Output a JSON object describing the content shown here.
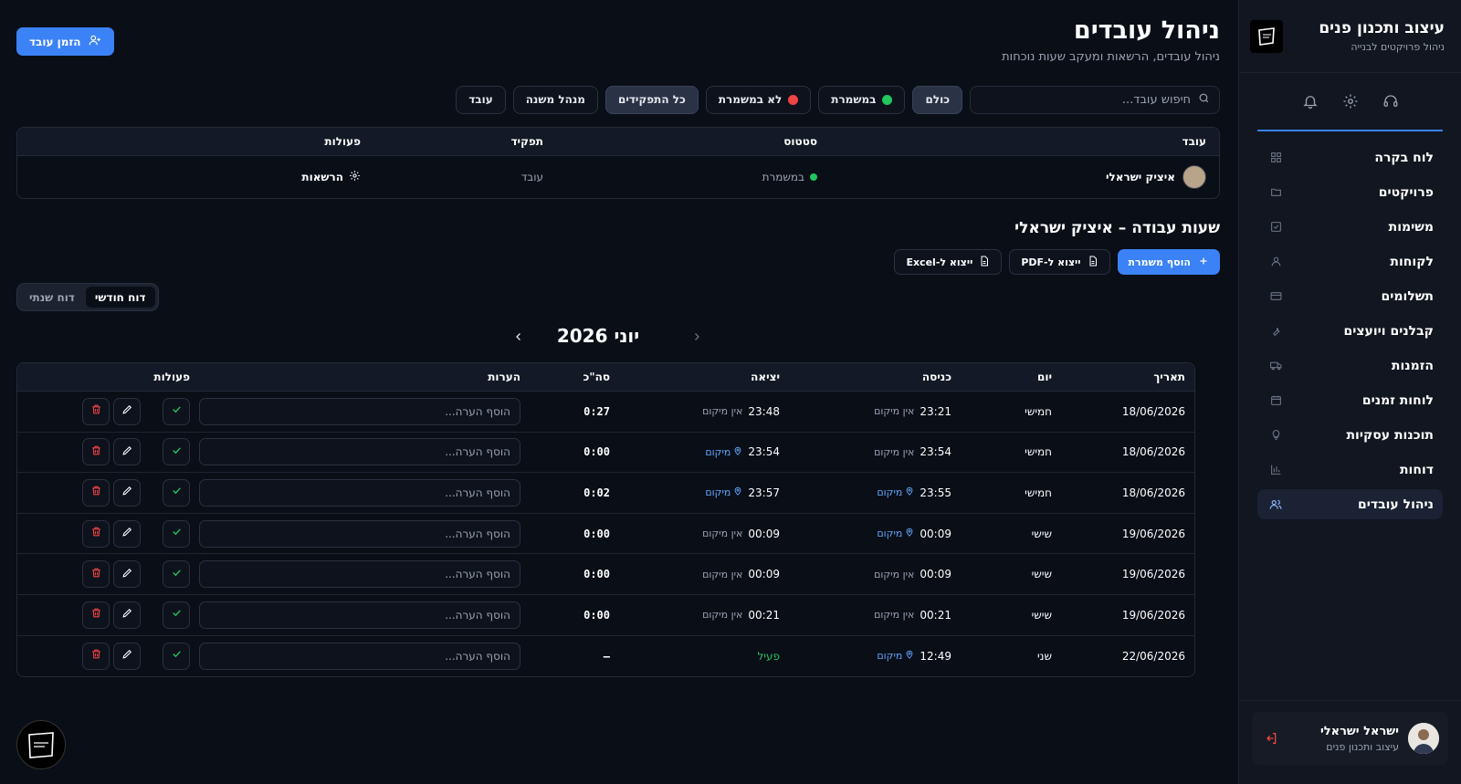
{
  "brand": {
    "title": "עיצוב ותכנון פנים",
    "subtitle": "ניהול פרויקטים לבנייה"
  },
  "sidebar": {
    "top_icons": [
      "bell-icon",
      "gear-icon",
      "headset-icon"
    ],
    "items": [
      {
        "label": "לוח בקרה",
        "icon": "grid-icon"
      },
      {
        "label": "פרויקטים",
        "icon": "folder-icon"
      },
      {
        "label": "משימות",
        "icon": "checkbox-icon"
      },
      {
        "label": "לקוחות",
        "icon": "user-icon"
      },
      {
        "label": "תשלומים",
        "icon": "card-icon"
      },
      {
        "label": "קבלנים ויועצים",
        "icon": "wrench-icon"
      },
      {
        "label": "הזמנות",
        "icon": "truck-icon"
      },
      {
        "label": "לוחות זמנים",
        "icon": "calendar-icon"
      },
      {
        "label": "תוכנות עסקיות",
        "icon": "bulb-icon"
      },
      {
        "label": "דוחות",
        "icon": "bar-chart-icon"
      },
      {
        "label": "ניהול עובדים",
        "icon": "users-icon",
        "active": true
      }
    ],
    "user": {
      "name": "ישראל ישראלי",
      "role": "עיצוב ותכנון פנים"
    }
  },
  "header": {
    "title": "ניהול עובדים",
    "subtitle": "ניהול עובדים, הרשאות ומעקב שעות נוכחות",
    "invite_label": "הזמן עובד"
  },
  "filters": {
    "search_placeholder": "חיפוש עובד...",
    "status": [
      {
        "label": "כולם",
        "active": true
      },
      {
        "label": "במשמרת",
        "color": "#22c55e"
      },
      {
        "label": "לא במשמרת",
        "color": "#ef4444"
      }
    ],
    "roles": [
      {
        "label": "כל התפקידים",
        "active": true
      },
      {
        "label": "מנהל משנה"
      },
      {
        "label": "עובד"
      }
    ]
  },
  "employees": {
    "columns": [
      "עובד",
      "סטטוס",
      "תפקיד",
      "פעולות"
    ],
    "rows": [
      {
        "name": "איציק ישראלי",
        "status": "במשמרת",
        "role": "עובד",
        "action": "הרשאות"
      }
    ]
  },
  "hours": {
    "title": "שעות עבודה – איציק ישראלי",
    "add_shift": "הוסף משמרת",
    "export_pdf": "ייצוא ל-PDF",
    "export_excel": "ייצוא ל-Excel",
    "toggle": {
      "monthly": "דוח חודשי",
      "yearly": "דוח שנתי"
    },
    "month": "יוני 2026",
    "columns": [
      "תאריך",
      "יום",
      "כניסה",
      "יציאה",
      "סה\"כ",
      "הערות",
      "פעולות"
    ],
    "note_placeholder": "הוסף הערה...",
    "location_label": "מיקום",
    "no_location_label": "אין מיקום",
    "rows": [
      {
        "date": "18/06/2026",
        "day": "חמישי",
        "in": "23:21",
        "in_loc": false,
        "out": "23:48",
        "out_loc": false,
        "total": "0:27"
      },
      {
        "date": "18/06/2026",
        "day": "חמישי",
        "in": "23:54",
        "in_loc": false,
        "out": "23:54",
        "out_loc": true,
        "total": "0:00"
      },
      {
        "date": "18/06/2026",
        "day": "חמישי",
        "in": "23:55",
        "in_loc": true,
        "out": "23:57",
        "out_loc": true,
        "total": "0:02"
      },
      {
        "date": "19/06/2026",
        "day": "שישי",
        "in": "00:09",
        "in_loc": true,
        "out": "00:09",
        "out_loc": false,
        "total": "0:00"
      },
      {
        "date": "19/06/2026",
        "day": "שישי",
        "in": "00:09",
        "in_loc": false,
        "out": "00:09",
        "out_loc": false,
        "total": "0:00"
      },
      {
        "date": "19/06/2026",
        "day": "שישי",
        "in": "00:21",
        "in_loc": false,
        "out": "00:21",
        "out_loc": false,
        "total": "0:00"
      },
      {
        "date": "22/06/2026",
        "day": "שני",
        "in": "12:49",
        "in_loc": true,
        "out": "פעיל",
        "out_loc": null,
        "total": "–"
      }
    ]
  },
  "colors": {
    "accent": "#3b82f6",
    "success": "#22c55e",
    "danger": "#ef4444",
    "link": "#60a5fa"
  }
}
